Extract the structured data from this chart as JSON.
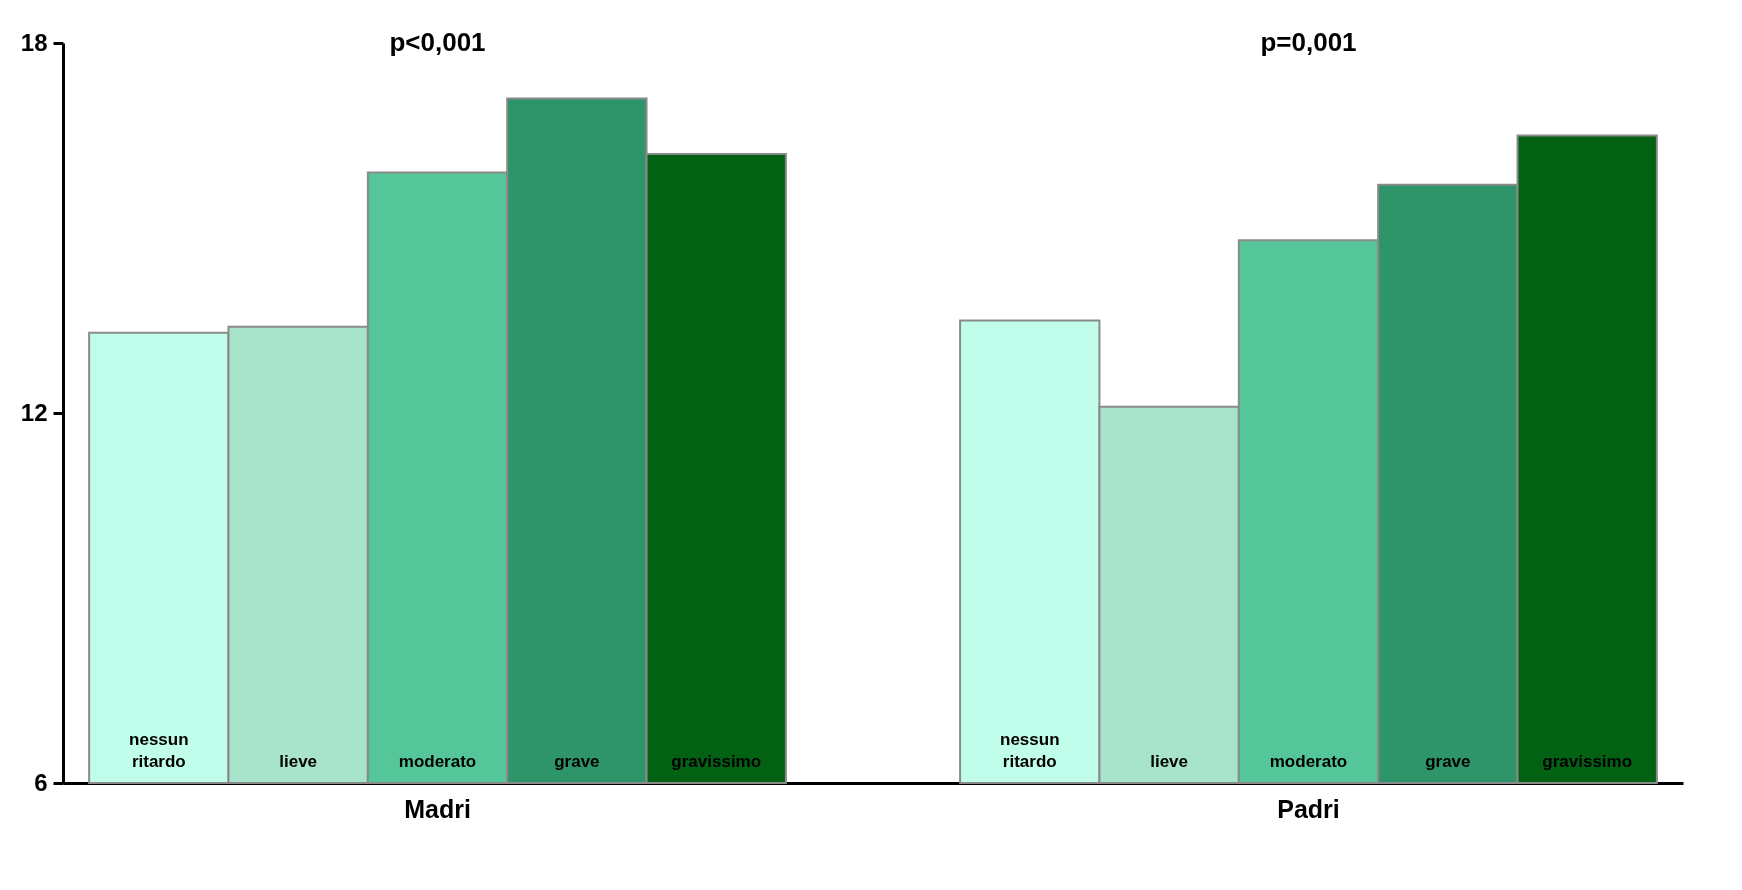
{
  "chart_data": {
    "type": "bar",
    "categories": [
      "Madri",
      "Padri"
    ],
    "series": [
      {
        "name": "nessun ritardo",
        "color": "#c0fdeb",
        "values": [
          13.3,
          13.5
        ]
      },
      {
        "name": "lieve",
        "color": "#a8e3cb",
        "values": [
          13.4,
          12.1
        ]
      },
      {
        "name": "moderato",
        "color": "#55c699",
        "values": [
          15.9,
          14.8
        ]
      },
      {
        "name": "grave",
        "color": "#2e946a",
        "values": [
          17.1,
          15.7
        ]
      },
      {
        "name": "gravissimo",
        "color": "#036114",
        "values": [
          16.2,
          16.5
        ]
      }
    ],
    "ylim": [
      6,
      18
    ],
    "yticks": [
      6,
      12,
      18
    ],
    "grid": false,
    "legend": false,
    "annotations": [
      "p<0,001",
      "p=0,001"
    ]
  }
}
